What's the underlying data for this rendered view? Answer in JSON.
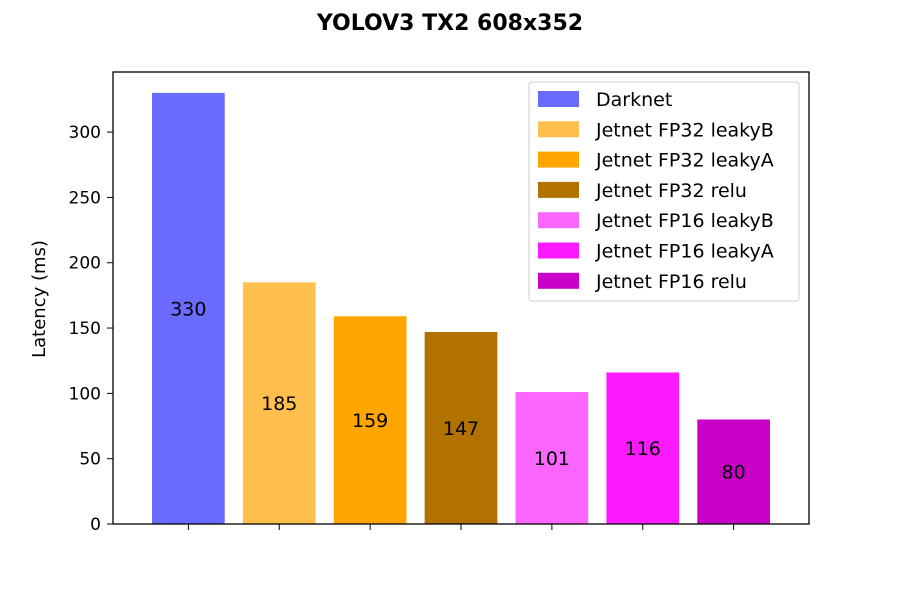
{
  "chart_data": {
    "type": "bar",
    "title": "YOLOV3 TX2 608x352",
    "xlabel": "",
    "ylabel": "Latency (ms)",
    "ylim": [
      0,
      346
    ],
    "yticks": [
      0,
      50,
      100,
      150,
      200,
      250,
      300
    ],
    "legend_position": "top-right",
    "grid": false,
    "series": [
      {
        "name": "Darknet",
        "value": 330,
        "color": "#6a6aff"
      },
      {
        "name": "Jetnet FP32 leakyB",
        "value": 185,
        "color": "#ffbf4d"
      },
      {
        "name": "Jetnet FP32 leakyA",
        "value": 159,
        "color": "#ffa500"
      },
      {
        "name": "Jetnet FP32 relu",
        "value": 147,
        "color": "#b17200"
      },
      {
        "name": "Jetnet FP16 leakyB",
        "value": 101,
        "color": "#fb66ff"
      },
      {
        "name": "Jetnet FP16 leakyA",
        "value": 116,
        "color": "#fb1aff"
      },
      {
        "name": "Jetnet FP16 relu",
        "value": 80,
        "color": "#c800c8"
      }
    ]
  }
}
